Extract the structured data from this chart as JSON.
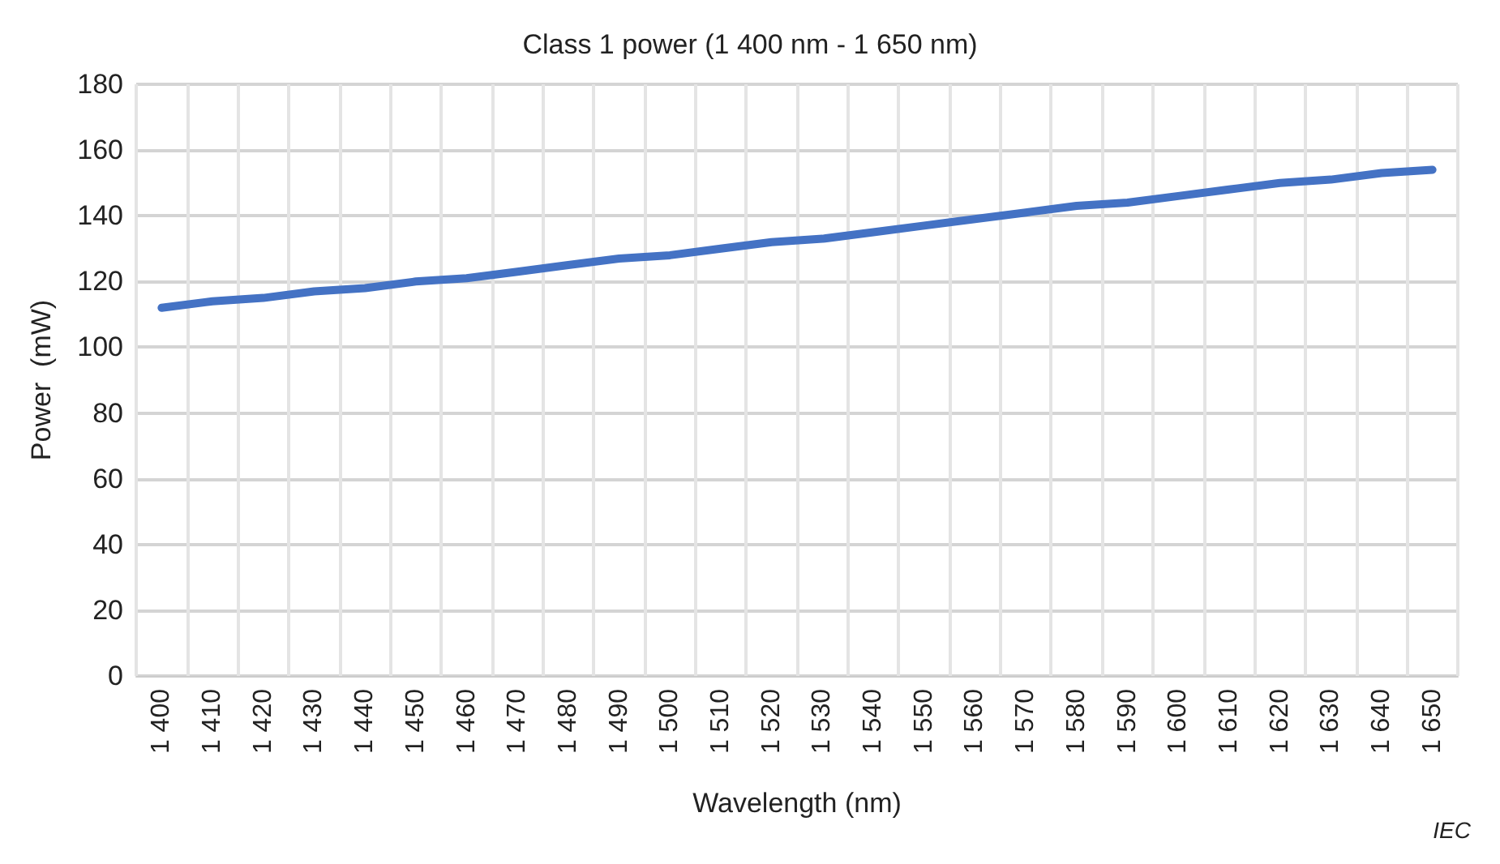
{
  "chart_data": {
    "type": "line",
    "title": "Class 1 power (1 400 nm - 1 650 nm)",
    "xlabel": "Wavelength (nm)",
    "ylabel": "Power  (mW)",
    "categories": [
      "1 400",
      "1 410",
      "1 420",
      "1 430",
      "1 440",
      "1 450",
      "1 460",
      "1 470",
      "1 480",
      "1 490",
      "1 500",
      "1 510",
      "1 520",
      "1 530",
      "1 540",
      "1 550",
      "1 560",
      "1 570",
      "1 580",
      "1 590",
      "1 600",
      "1 610",
      "1 620",
      "1 630",
      "1 640",
      "1 650"
    ],
    "series": [
      {
        "color": "#4472c4",
        "values": [
          112,
          114,
          115,
          117,
          118,
          120,
          121,
          123,
          125,
          127,
          128,
          130,
          132,
          133,
          135,
          137,
          139,
          141,
          143,
          144,
          146,
          148,
          150,
          151,
          153,
          154
        ]
      }
    ],
    "ylim": [
      0,
      180
    ],
    "yticks": [
      0,
      20,
      40,
      60,
      80,
      100,
      120,
      140,
      160,
      180
    ],
    "grid": true,
    "marker": "none",
    "line_style": "solid",
    "annotations": [
      "IEC"
    ]
  }
}
